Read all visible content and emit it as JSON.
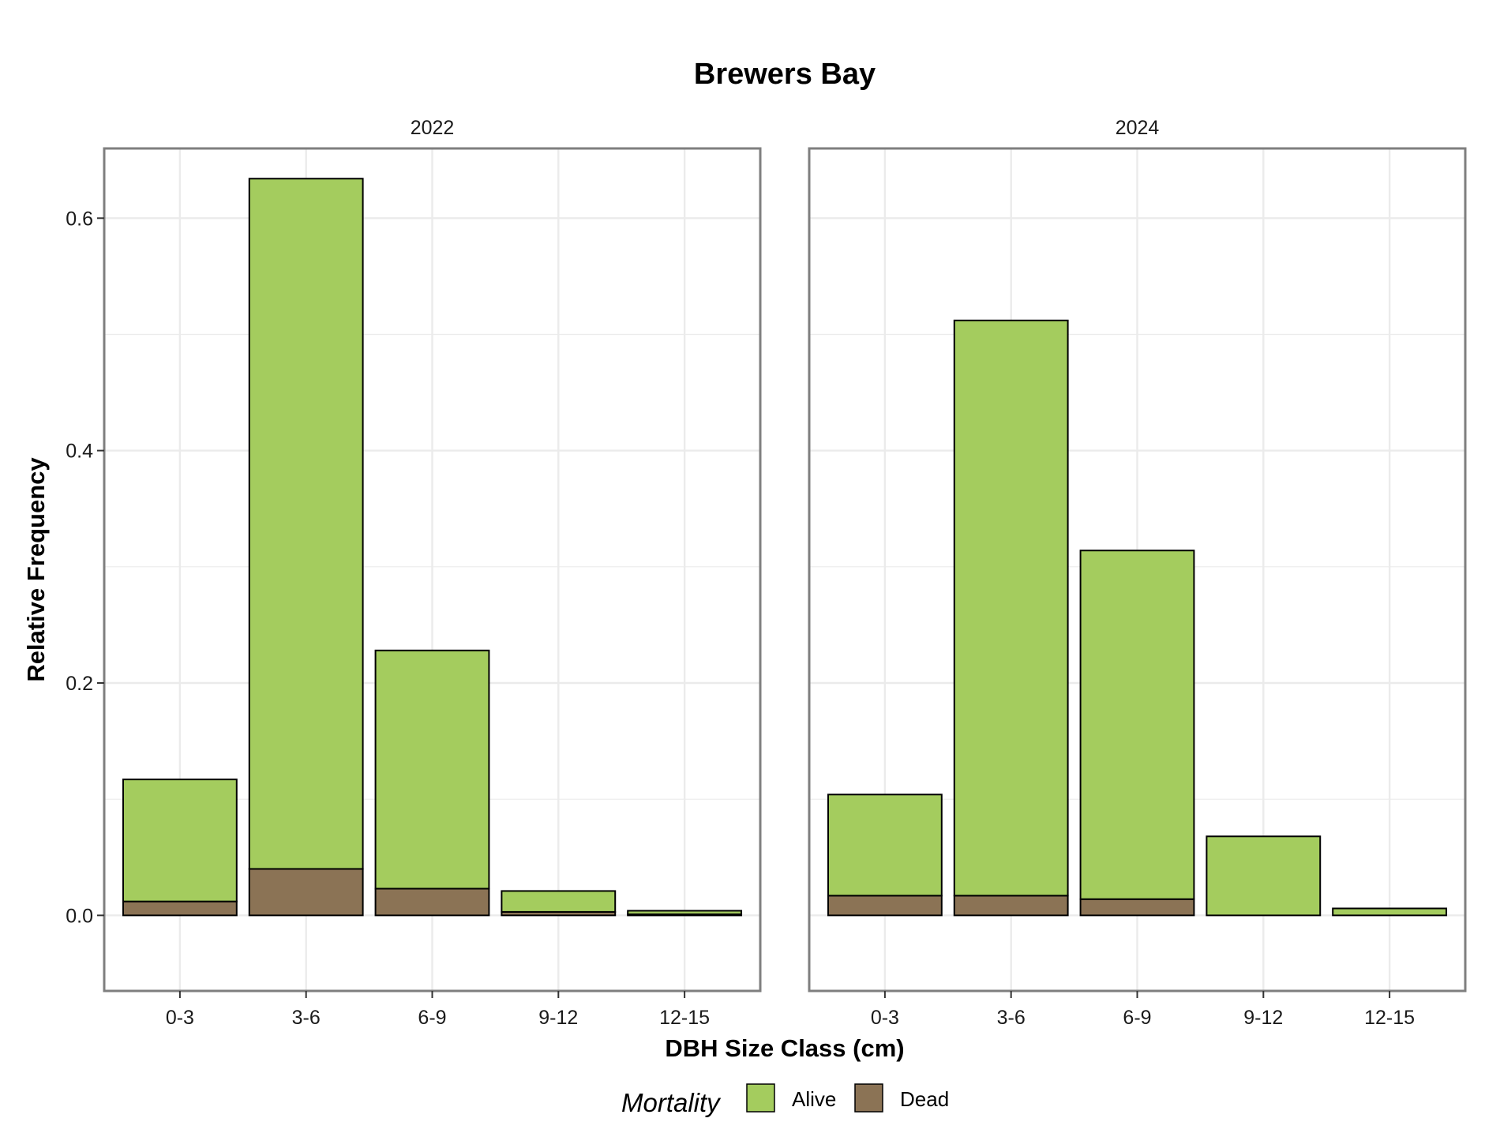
{
  "chart_data": {
    "type": "bar",
    "stacked": true,
    "title": "Brewers Bay",
    "xlabel": "DBH Size Class (cm)",
    "ylabel": "Relative Frequency",
    "ylim": [
      -0.065,
      0.66
    ],
    "yticks": [
      0.0,
      0.2,
      0.4,
      0.6
    ],
    "ytick_labels": [
      "0.0",
      "0.2",
      "0.4",
      "0.6"
    ],
    "grid": true,
    "categories": [
      "0-3",
      "3-6",
      "6-9",
      "9-12",
      "12-15"
    ],
    "legend": {
      "title": "Mortality",
      "position": "bottom",
      "entries": [
        "Alive",
        "Dead"
      ]
    },
    "colors": {
      "Alive": "#a4cc5e",
      "Dead": "#8b7355",
      "outline": "#000000",
      "grid": "#ebebeb",
      "panel_border": "#7f7f7f"
    },
    "facets": [
      {
        "label": "2022",
        "series": [
          {
            "name": "Dead",
            "values": [
              0.012,
              0.04,
              0.023,
              0.003,
              0.001
            ]
          },
          {
            "name": "Alive",
            "values": [
              0.105,
              0.594,
              0.205,
              0.018,
              0.003
            ]
          }
        ]
      },
      {
        "label": "2024",
        "series": [
          {
            "name": "Dead",
            "values": [
              0.017,
              0.017,
              0.014,
              0.0,
              0.0
            ]
          },
          {
            "name": "Alive",
            "values": [
              0.087,
              0.495,
              0.3,
              0.068,
              0.006
            ]
          }
        ]
      }
    ]
  }
}
